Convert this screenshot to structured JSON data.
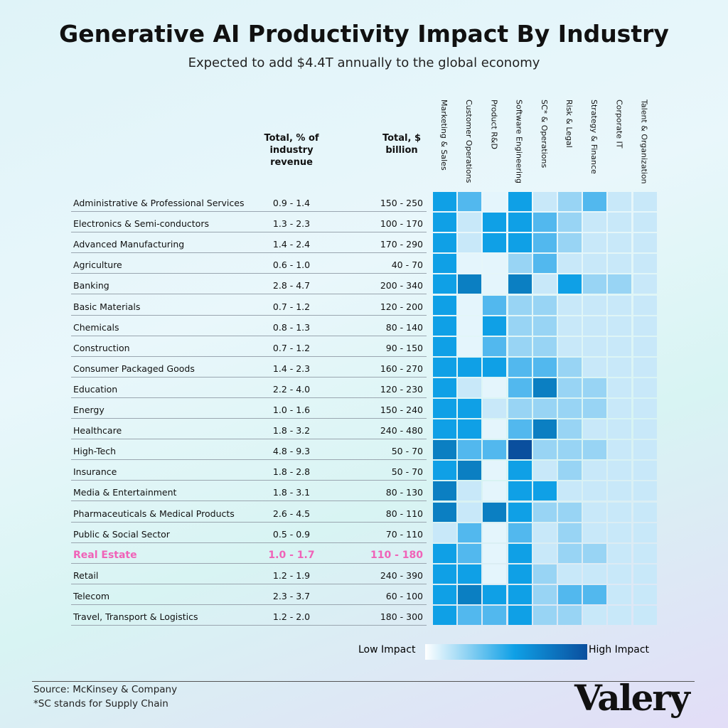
{
  "title": "Generative AI Productivity Impact By Industry",
  "subtitle": "Expected to add $4.4T annually to the global economy",
  "headers": {
    "revenue": "Total, % of industry revenue",
    "total": "Total, $ billion"
  },
  "functions": [
    "Marketing & Sales",
    "Customer Operations",
    "Product R&D",
    "Software Engineering",
    "SC* & Operations",
    "Risk & Legal",
    "Strategy & Finance",
    "Corporate IT",
    "Talent & Organization"
  ],
  "colorscale": [
    "#e4f5fc",
    "#c8e8f9",
    "#98d4f4",
    "#52b8ee",
    "#0fa0e6",
    "#0b7fc2",
    "#0a4f9e"
  ],
  "rows": [
    {
      "name": "Administrative & Professional Services",
      "revenue": "0.9 - 1.4",
      "total": "150 - 250",
      "impact": [
        4,
        3,
        0,
        4,
        1,
        2,
        3,
        1,
        1
      ]
    },
    {
      "name": "Electronics & Semi-conductors",
      "revenue": "1.3 - 2.3",
      "total": "100 - 170",
      "impact": [
        4,
        1,
        4,
        4,
        3,
        2,
        1,
        1,
        1
      ]
    },
    {
      "name": "Advanced Manufacturing",
      "revenue": "1.4 - 2.4",
      "total": "170 - 290",
      "impact": [
        4,
        1,
        4,
        4,
        3,
        2,
        1,
        1,
        1
      ]
    },
    {
      "name": "Agriculture",
      "revenue": "0.6 - 1.0",
      "total": "40 - 70",
      "impact": [
        4,
        0,
        0,
        2,
        3,
        1,
        1,
        1,
        1
      ]
    },
    {
      "name": "Banking",
      "revenue": "2.8 - 4.7",
      "total": "200 - 340",
      "impact": [
        4,
        5,
        0,
        5,
        1,
        4,
        2,
        2,
        1
      ]
    },
    {
      "name": "Basic Materials",
      "revenue": "0.7 - 1.2",
      "total": "120 - 200",
      "impact": [
        4,
        0,
        3,
        2,
        2,
        1,
        1,
        1,
        1
      ]
    },
    {
      "name": "Chemicals",
      "revenue": "0.8 - 1.3",
      "total": "80 - 140",
      "impact": [
        4,
        0,
        4,
        2,
        2,
        1,
        1,
        1,
        1
      ]
    },
    {
      "name": "Construction",
      "revenue": "0.7 - 1.2",
      "total": "90 - 150",
      "impact": [
        4,
        0,
        3,
        2,
        2,
        1,
        1,
        1,
        1
      ]
    },
    {
      "name": "Consumer Packaged Goods",
      "revenue": "1.4 - 2.3",
      "total": "160 - 270",
      "impact": [
        4,
        4,
        4,
        3,
        3,
        2,
        1,
        1,
        1
      ]
    },
    {
      "name": "Education",
      "revenue": "2.2 - 4.0",
      "total": "120 - 230",
      "impact": [
        4,
        1,
        0,
        3,
        5,
        2,
        2,
        1,
        1
      ]
    },
    {
      "name": "Energy",
      "revenue": "1.0 - 1.6",
      "total": "150 - 240",
      "impact": [
        4,
        4,
        1,
        2,
        2,
        2,
        2,
        1,
        1
      ]
    },
    {
      "name": "Healthcare",
      "revenue": "1.8 - 3.2",
      "total": "240 - 480",
      "impact": [
        4,
        4,
        0,
        3,
        5,
        2,
        1,
        1,
        1
      ]
    },
    {
      "name": "High-Tech",
      "revenue": "4.8 - 9.3",
      "total": "50 - 70",
      "impact": [
        5,
        3,
        3,
        6,
        2,
        2,
        2,
        1,
        1
      ]
    },
    {
      "name": "Insurance",
      "revenue": "1.8 - 2.8",
      "total": "50 - 70",
      "impact": [
        4,
        5,
        0,
        4,
        1,
        2,
        1,
        1,
        1
      ]
    },
    {
      "name": "Media & Entertainment",
      "revenue": "1.8 - 3.1",
      "total": "80 - 130",
      "impact": [
        5,
        1,
        0,
        4,
        4,
        1,
        1,
        1,
        1
      ]
    },
    {
      "name": "Pharmaceuticals & Medical Products",
      "revenue": "2.6 - 4.5",
      "total": "80 - 110",
      "impact": [
        5,
        1,
        5,
        4,
        2,
        2,
        1,
        1,
        1
      ]
    },
    {
      "name": "Public & Social Sector",
      "revenue": "0.5 - 0.9",
      "total": "70 - 110",
      "impact": [
        1,
        3,
        0,
        3,
        1,
        2,
        1,
        1,
        1
      ]
    },
    {
      "name": "Real Estate",
      "revenue": "1.0 - 1.7",
      "total": "110 - 180",
      "impact": [
        4,
        3,
        0,
        4,
        1,
        2,
        2,
        1,
        1
      ],
      "highlighted": true
    },
    {
      "name": "Retail",
      "revenue": "1.2 - 1.9",
      "total": "240 - 390",
      "impact": [
        4,
        4,
        0,
        4,
        2,
        1,
        1,
        1,
        1
      ]
    },
    {
      "name": "Telecom",
      "revenue": "2.3 - 3.7",
      "total": "60 - 100",
      "impact": [
        4,
        5,
        4,
        4,
        2,
        3,
        3,
        1,
        1
      ]
    },
    {
      "name": "Travel, Transport & Logistics",
      "revenue": "1.2 - 2.0",
      "total": "180 - 300",
      "impact": [
        4,
        3,
        3,
        4,
        2,
        2,
        1,
        1,
        1
      ]
    }
  ],
  "legend": {
    "low": "Low Impact",
    "high": "High Impact"
  },
  "footer": {
    "source": "Source: McKinsey & Company",
    "note": "*SC stands for Supply Chain"
  },
  "brand": "Valery"
}
